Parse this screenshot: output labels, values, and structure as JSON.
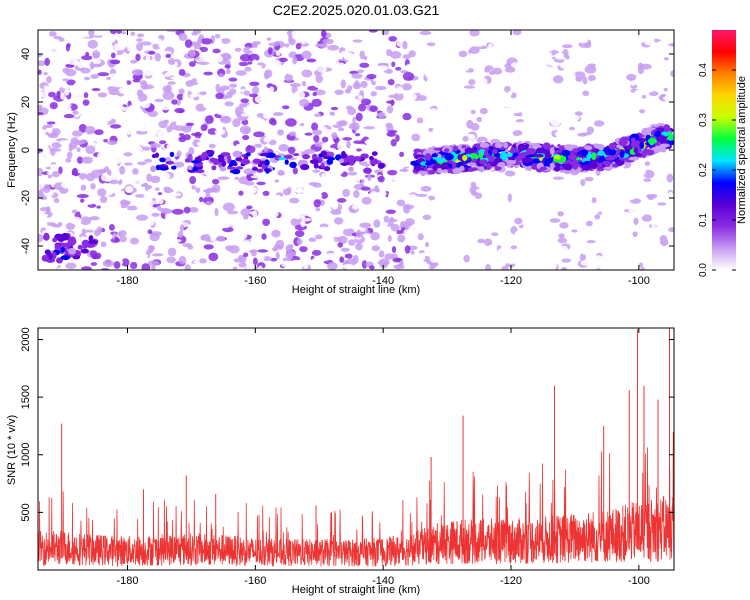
{
  "title": "C2E2.2025.020.01.03.G21",
  "chart_data": [
    {
      "type": "heatmap",
      "xlabel": "Height of straight line (km)",
      "ylabel": "Frequency (Hz)",
      "xlim": [
        -194,
        -94.5
      ],
      "ylim": [
        -50,
        50
      ],
      "xticks": [
        -180,
        -160,
        -140,
        -120,
        -100
      ],
      "yticks": [
        -40,
        -20,
        0,
        20,
        40
      ],
      "colorbar": {
        "label": "Normalized spectral amplitude",
        "range": [
          0,
          0.48
        ],
        "ticks": [
          "0.0",
          "0.1",
          "0.2",
          "0.3",
          "0.4"
        ],
        "colors": [
          "#ffffff",
          "#c79cf2",
          "#8a2be2",
          "#5a00d6",
          "#0000ff",
          "#00e5ff",
          "#00ff40",
          "#c8ff00",
          "#ffd700",
          "#ff7f00",
          "#ff0000",
          "#ff1a6e"
        ]
      },
      "signal_band": {
        "description_x": [
          -135,
          -130,
          -125,
          -120,
          -115,
          -110,
          -105,
          -100,
          -97
        ],
        "center_freq": [
          -5,
          -4,
          -3,
          -2,
          -3,
          -4,
          -3,
          2,
          5
        ],
        "peak_amplitude": [
          0.2,
          0.35,
          0.3,
          0.25,
          0.33,
          0.28,
          0.3,
          0.38,
          0.3
        ]
      }
    },
    {
      "type": "line",
      "xlabel": "Height of straight line (km)",
      "ylabel": "SNR (10 * v/v)",
      "xlim": [
        -194,
        -94.5
      ],
      "ylim": [
        0,
        2100
      ],
      "xticks": [
        -180,
        -160,
        -140,
        -120,
        -100
      ],
      "yticks": [
        500,
        1000,
        1500,
        2000
      ],
      "series_color": "#ee3333",
      "baseline_envelope": {
        "x": [
          -194,
          -190,
          -185,
          -180,
          -175,
          -170,
          -165,
          -160,
          -155,
          -150,
          -145,
          -140,
          -136,
          -132,
          -128,
          -124,
          -120,
          -116,
          -112,
          -108,
          -104,
          -100,
          -96,
          -94.5
        ],
        "level": [
          250,
          260,
          230,
          220,
          230,
          240,
          230,
          210,
          200,
          200,
          200,
          210,
          230,
          300,
          330,
          330,
          330,
          340,
          360,
          380,
          400,
          450,
          480,
          500
        ]
      },
      "spikes": [
        {
          "x": -190.3,
          "y": 1270
        },
        {
          "x": -177.5,
          "y": 700
        },
        {
          "x": -170.8,
          "y": 820
        },
        {
          "x": -166.2,
          "y": 660
        },
        {
          "x": -150.5,
          "y": 560
        },
        {
          "x": -132.5,
          "y": 980
        },
        {
          "x": -127.5,
          "y": 1340
        },
        {
          "x": -113.2,
          "y": 1600
        },
        {
          "x": -105.5,
          "y": 1250
        },
        {
          "x": -101.5,
          "y": 1560
        },
        {
          "x": -100.2,
          "y": 2090
        },
        {
          "x": -99.2,
          "y": 1600
        },
        {
          "x": -97.0,
          "y": 1480
        },
        {
          "x": -95.2,
          "y": 2100
        }
      ]
    }
  ]
}
